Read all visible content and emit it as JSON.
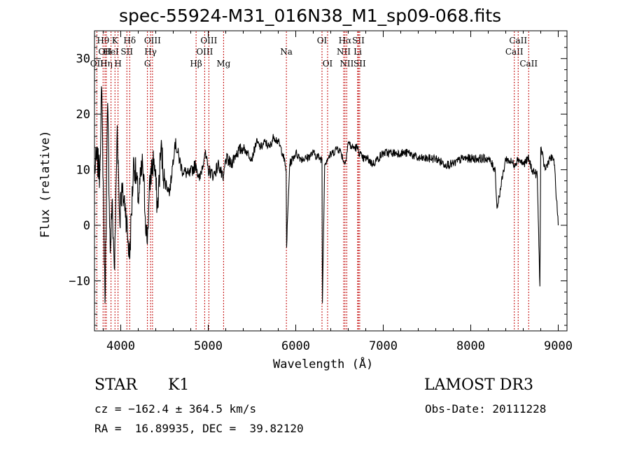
{
  "header": {
    "title": "spec-55924-M31_016N38_M1_sp09-068.fits"
  },
  "info": {
    "object_class": "STAR",
    "subclass": "K1",
    "survey": "LAMOST DR3",
    "cz": "cz = −162.4 ± 364.5 km/s",
    "obs_date": "Obs-Date: 20111228",
    "radec": "RA =  16.89935, DEC =  39.82120"
  },
  "chart_data": {
    "type": "line",
    "title": "spec-55924-M31_016N38_M1_sp09-068.fits",
    "xlabel": "Wavelength (Å)",
    "ylabel": "Flux (relative)",
    "xlim": [
      3700,
      9100
    ],
    "ylim": [
      -19,
      35
    ],
    "x_ticks": [
      4000,
      5000,
      6000,
      7000,
      8000,
      9000
    ],
    "x_minor_step": 200,
    "y_ticks": [
      -10,
      0,
      10,
      20,
      30
    ],
    "y_tick_labels": [
      "−10",
      "0",
      "10",
      "20",
      "30"
    ],
    "y_minor_step": 2,
    "line_color": "#000000",
    "marker_color": "#c00000",
    "series": [
      {
        "name": "flux",
        "x": [
          3700,
          3730,
          3760,
          3780,
          3800,
          3820,
          3850,
          3880,
          3900,
          3930,
          3960,
          3990,
          4000,
          4050,
          4100,
          4150,
          4200,
          4250,
          4300,
          4340,
          4380,
          4420,
          4460,
          4500,
          4560,
          4620,
          4700,
          4780,
          4860,
          4900,
          4960,
          5000,
          5060,
          5120,
          5170,
          5200,
          5260,
          5320,
          5400,
          5450,
          5500,
          5550,
          5600,
          5650,
          5700,
          5750,
          5800,
          5850,
          5890,
          5895,
          5930,
          6000,
          6060,
          6120,
          6200,
          6280,
          6300,
          6305,
          6330,
          6360,
          6420,
          6480,
          6520,
          6560,
          6563,
          6600,
          6640,
          6700,
          6760,
          6820,
          6880,
          6940,
          7000,
          7100,
          7200,
          7300,
          7400,
          7500,
          7600,
          7700,
          7800,
          7900,
          8000,
          8100,
          8200,
          8280,
          8300,
          8400,
          8500,
          8542,
          8600,
          8662,
          8700,
          8760,
          8790,
          8800,
          8850,
          8900,
          8950,
          9000
        ],
        "y": [
          10,
          12,
          9,
          25,
          8,
          -14,
          22,
          -5,
          4,
          -8,
          18,
          0,
          6,
          4,
          -6,
          12,
          5,
          11,
          -3,
          9,
          12,
          3,
          14,
          8,
          6,
          15,
          10,
          9,
          11,
          8,
          13,
          10,
          9,
          11,
          8,
          12,
          11,
          13,
          14,
          13,
          12,
          15,
          14,
          15,
          14,
          16,
          15,
          13,
          10,
          -4,
          11,
          13,
          12,
          12,
          13,
          12,
          12,
          -14,
          11,
          12,
          13,
          14,
          13,
          11,
          11,
          15,
          14,
          14,
          12,
          12,
          11,
          12,
          13,
          13,
          13,
          13,
          12,
          12,
          12,
          11,
          11,
          12,
          12,
          12,
          12,
          10,
          3,
          12,
          11,
          12,
          11,
          12,
          10,
          9,
          -11,
          14,
          10,
          12,
          12,
          0
        ]
      }
    ],
    "line_markers": [
      {
        "label": "OII",
        "x": 3727,
        "row": 2
      },
      {
        "label": "Hθ",
        "x": 3798,
        "row": 0
      },
      {
        "label": "OII",
        "x": 3820,
        "row": 1
      },
      {
        "label": "Hη",
        "x": 3835,
        "row": 2
      },
      {
        "label": "K",
        "x": 3934,
        "row": 0
      },
      {
        "label": "HeI",
        "x": 3889,
        "row": 1
      },
      {
        "label": "H",
        "x": 3969,
        "row": 2
      },
      {
        "label": "Hδ",
        "x": 4102,
        "row": 0
      },
      {
        "label": "SII",
        "x": 4070,
        "row": 1
      },
      {
        "label": "OIII",
        "x": 4363,
        "row": 0
      },
      {
        "label": "Hγ",
        "x": 4341,
        "row": 1
      },
      {
        "label": "G",
        "x": 4305,
        "row": 2
      },
      {
        "label": "Hβ",
        "x": 4861,
        "row": 2
      },
      {
        "label": "OIII",
        "x": 4959,
        "row": 1
      },
      {
        "label": "OIII",
        "x": 5007,
        "row": 0
      },
      {
        "label": "Mg",
        "x": 5175,
        "row": 2
      },
      {
        "label": "Na",
        "x": 5893,
        "row": 1
      },
      {
        "label": "OI",
        "x": 6300,
        "row": 0
      },
      {
        "label": "OI",
        "x": 6364,
        "row": 2
      },
      {
        "label": "NII",
        "x": 6548,
        "row": 1
      },
      {
        "label": "Hα",
        "x": 6563,
        "row": 0
      },
      {
        "label": "NII",
        "x": 6583,
        "row": 2
      },
      {
        "label": "SII",
        "x": 6716,
        "row": 0
      },
      {
        "label": "Li",
        "x": 6708,
        "row": 1
      },
      {
        "label": "SII",
        "x": 6731,
        "row": 2
      },
      {
        "label": "CaII",
        "x": 8498,
        "row": 1
      },
      {
        "label": "CaII",
        "x": 8542,
        "row": 0
      },
      {
        "label": "CaII",
        "x": 8662,
        "row": 2
      }
    ]
  }
}
